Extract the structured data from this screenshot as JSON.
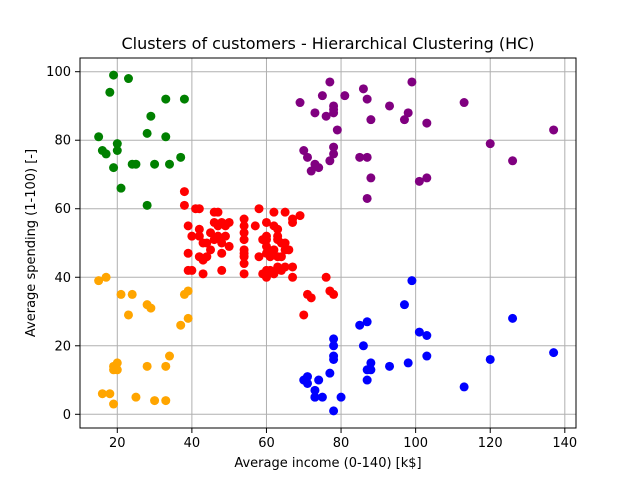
{
  "chart_data": {
    "type": "scatter",
    "title": "Clusters of customers - Hierarchical Clustering (HC)",
    "xlabel": "Average income (0-140) [k$]",
    "ylabel": "Average spending (1-100) [-]",
    "xlim": [
      10,
      143
    ],
    "ylim": [
      -4,
      104
    ],
    "xticks": [
      20,
      40,
      60,
      80,
      100,
      120,
      140
    ],
    "yticks": [
      0,
      20,
      40,
      60,
      80,
      100
    ],
    "grid": true,
    "series": [
      {
        "color": "#ff0000",
        "points": [
          [
            38,
            65
          ],
          [
            38,
            61
          ],
          [
            39,
            55
          ],
          [
            39,
            47
          ],
          [
            39,
            42
          ],
          [
            40,
            52
          ],
          [
            40,
            42
          ],
          [
            41,
            60
          ],
          [
            42,
            60
          ],
          [
            42,
            52
          ],
          [
            42,
            54
          ],
          [
            42,
            46
          ],
          [
            43,
            45
          ],
          [
            43,
            41
          ],
          [
            43,
            50
          ],
          [
            44,
            50
          ],
          [
            44,
            46
          ],
          [
            45,
            48
          ],
          [
            45,
            53
          ],
          [
            46,
            51
          ],
          [
            46,
            59
          ],
          [
            46,
            56
          ],
          [
            47,
            59
          ],
          [
            47,
            55
          ],
          [
            47,
            52
          ],
          [
            48,
            50
          ],
          [
            48,
            42
          ],
          [
            48,
            56
          ],
          [
            48,
            47
          ],
          [
            49,
            55
          ],
          [
            49,
            52
          ],
          [
            50,
            49
          ],
          [
            50,
            56
          ],
          [
            54,
            57
          ],
          [
            54,
            55
          ],
          [
            54,
            53
          ],
          [
            54,
            51
          ],
          [
            54,
            47
          ],
          [
            54,
            46
          ],
          [
            54,
            48
          ],
          [
            54,
            44
          ],
          [
            54,
            41
          ],
          [
            57,
            55
          ],
          [
            58,
            60
          ],
          [
            58,
            46
          ],
          [
            59,
            41
          ],
          [
            59,
            51
          ],
          [
            60,
            49
          ],
          [
            60,
            56
          ],
          [
            60,
            47
          ],
          [
            60,
            40
          ],
          [
            60,
            42
          ],
          [
            60,
            52
          ],
          [
            60,
            51
          ],
          [
            61,
            46
          ],
          [
            61,
            42
          ],
          [
            62,
            55
          ],
          [
            62,
            59
          ],
          [
            62,
            48
          ],
          [
            62,
            41
          ],
          [
            63,
            52
          ],
          [
            63,
            43
          ],
          [
            63,
            51
          ],
          [
            63,
            46
          ],
          [
            63,
            54
          ],
          [
            64,
            42
          ],
          [
            64,
            46
          ],
          [
            64,
            50
          ],
          [
            65,
            48
          ],
          [
            65,
            59
          ],
          [
            65,
            43
          ],
          [
            65,
            50
          ],
          [
            66,
            48
          ],
          [
            67,
            56
          ],
          [
            67,
            57
          ],
          [
            67,
            40
          ],
          [
            67,
            43
          ],
          [
            69,
            58
          ],
          [
            70,
            29
          ],
          [
            71,
            35
          ],
          [
            72,
            34
          ],
          [
            76,
            40
          ],
          [
            77,
            36
          ],
          [
            78,
            35
          ]
        ]
      },
      {
        "color": "#0000ff",
        "points": [
          [
            70,
            10
          ],
          [
            71,
            11
          ],
          [
            71,
            9
          ],
          [
            73,
            5
          ],
          [
            73,
            7
          ],
          [
            73,
            5
          ],
          [
            74,
            10
          ],
          [
            75,
            5
          ],
          [
            77,
            12
          ],
          [
            78,
            1
          ],
          [
            78,
            16
          ],
          [
            78,
            22
          ],
          [
            78,
            17
          ],
          [
            78,
            20
          ],
          [
            80,
            5
          ],
          [
            85,
            26
          ],
          [
            86,
            20
          ],
          [
            87,
            27
          ],
          [
            87,
            10
          ],
          [
            87,
            13
          ],
          [
            88,
            15
          ],
          [
            88,
            13
          ],
          [
            93,
            14
          ],
          [
            97,
            32
          ],
          [
            98,
            15
          ],
          [
            99,
            39
          ],
          [
            101,
            24
          ],
          [
            103,
            17
          ],
          [
            103,
            23
          ],
          [
            113,
            8
          ],
          [
            120,
            16
          ],
          [
            126,
            28
          ],
          [
            137,
            18
          ]
        ]
      },
      {
        "color": "#800080",
        "points": [
          [
            69,
            91
          ],
          [
            70,
            77
          ],
          [
            71,
            75
          ],
          [
            72,
            71
          ],
          [
            73,
            88
          ],
          [
            73,
            73
          ],
          [
            74,
            72
          ],
          [
            75,
            93
          ],
          [
            76,
            87
          ],
          [
            77,
            97
          ],
          [
            77,
            74
          ],
          [
            78,
            90
          ],
          [
            78,
            88
          ],
          [
            78,
            76
          ],
          [
            78,
            89
          ],
          [
            78,
            78
          ],
          [
            79,
            83
          ],
          [
            81,
            93
          ],
          [
            85,
            75
          ],
          [
            86,
            95
          ],
          [
            87,
            63
          ],
          [
            87,
            75
          ],
          [
            87,
            92
          ],
          [
            88,
            86
          ],
          [
            88,
            69
          ],
          [
            93,
            90
          ],
          [
            97,
            86
          ],
          [
            98,
            88
          ],
          [
            99,
            97
          ],
          [
            101,
            68
          ],
          [
            103,
            85
          ],
          [
            103,
            69
          ],
          [
            113,
            91
          ],
          [
            120,
            79
          ],
          [
            126,
            74
          ],
          [
            137,
            83
          ]
        ]
      },
      {
        "color": "#008000",
        "points": [
          [
            15,
            81
          ],
          [
            16,
            77
          ],
          [
            17,
            76
          ],
          [
            18,
            94
          ],
          [
            19,
            99
          ],
          [
            19,
            72
          ],
          [
            20,
            77
          ],
          [
            20,
            79
          ],
          [
            21,
            66
          ],
          [
            23,
            98
          ],
          [
            24,
            73
          ],
          [
            25,
            73
          ],
          [
            28,
            82
          ],
          [
            28,
            61
          ],
          [
            29,
            87
          ],
          [
            30,
            73
          ],
          [
            33,
            92
          ],
          [
            33,
            81
          ],
          [
            34,
            73
          ],
          [
            37,
            75
          ],
          [
            38,
            92
          ]
        ]
      },
      {
        "color": "#ffa500",
        "points": [
          [
            15,
            39
          ],
          [
            16,
            6
          ],
          [
            17,
            40
          ],
          [
            18,
            6
          ],
          [
            19,
            3
          ],
          [
            19,
            14
          ],
          [
            19,
            13
          ],
          [
            20,
            15
          ],
          [
            20,
            13
          ],
          [
            21,
            35
          ],
          [
            23,
            29
          ],
          [
            24,
            35
          ],
          [
            25,
            5
          ],
          [
            28,
            32
          ],
          [
            28,
            14
          ],
          [
            29,
            31
          ],
          [
            30,
            4
          ],
          [
            33,
            4
          ],
          [
            33,
            14
          ],
          [
            34,
            17
          ],
          [
            37,
            26
          ],
          [
            38,
            35
          ],
          [
            39,
            36
          ],
          [
            39,
            28
          ]
        ]
      }
    ]
  }
}
